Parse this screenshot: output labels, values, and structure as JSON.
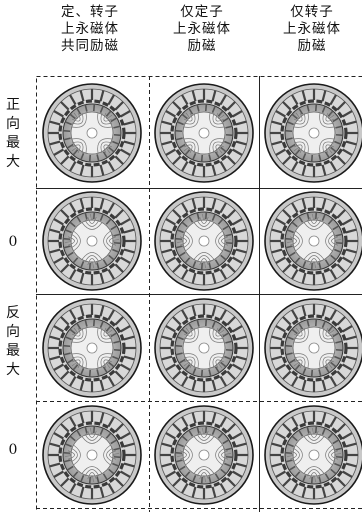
{
  "column_headers": [
    {
      "lines": [
        "定、转子",
        "上永磁体",
        "共同励磁"
      ]
    },
    {
      "lines": [
        "仅定子",
        "上永磁体",
        "励磁"
      ]
    },
    {
      "lines": [
        "仅转子",
        "上永磁体",
        "励磁"
      ]
    }
  ],
  "row_labels": [
    {
      "lines": [
        "正",
        "向",
        "最",
        "大"
      ]
    },
    {
      "lines": [
        "0"
      ]
    },
    {
      "lines": [
        "反",
        "向",
        "最",
        "大"
      ]
    },
    {
      "lines": [
        "0"
      ]
    }
  ],
  "cells": [
    {
      "row": 0,
      "col": 0,
      "orientation_deg": 0
    },
    {
      "row": 0,
      "col": 1,
      "orientation_deg": 0
    },
    {
      "row": 0,
      "col": 2,
      "orientation_deg": 0
    },
    {
      "row": 1,
      "col": 0,
      "orientation_deg": 45
    },
    {
      "row": 1,
      "col": 1,
      "orientation_deg": 45
    },
    {
      "row": 1,
      "col": 2,
      "orientation_deg": 45
    },
    {
      "row": 2,
      "col": 0,
      "orientation_deg": 0
    },
    {
      "row": 2,
      "col": 1,
      "orientation_deg": 90
    },
    {
      "row": 2,
      "col": 2,
      "orientation_deg": 90
    },
    {
      "row": 3,
      "col": 0,
      "orientation_deg": 45
    },
    {
      "row": 3,
      "col": 1,
      "orientation_deg": 45
    },
    {
      "row": 3,
      "col": 2,
      "orientation_deg": 45
    }
  ],
  "colors": {
    "ink": "#1a1a1a",
    "steel": "#c9c9c9",
    "dark_band": "#3a3a3a"
  }
}
